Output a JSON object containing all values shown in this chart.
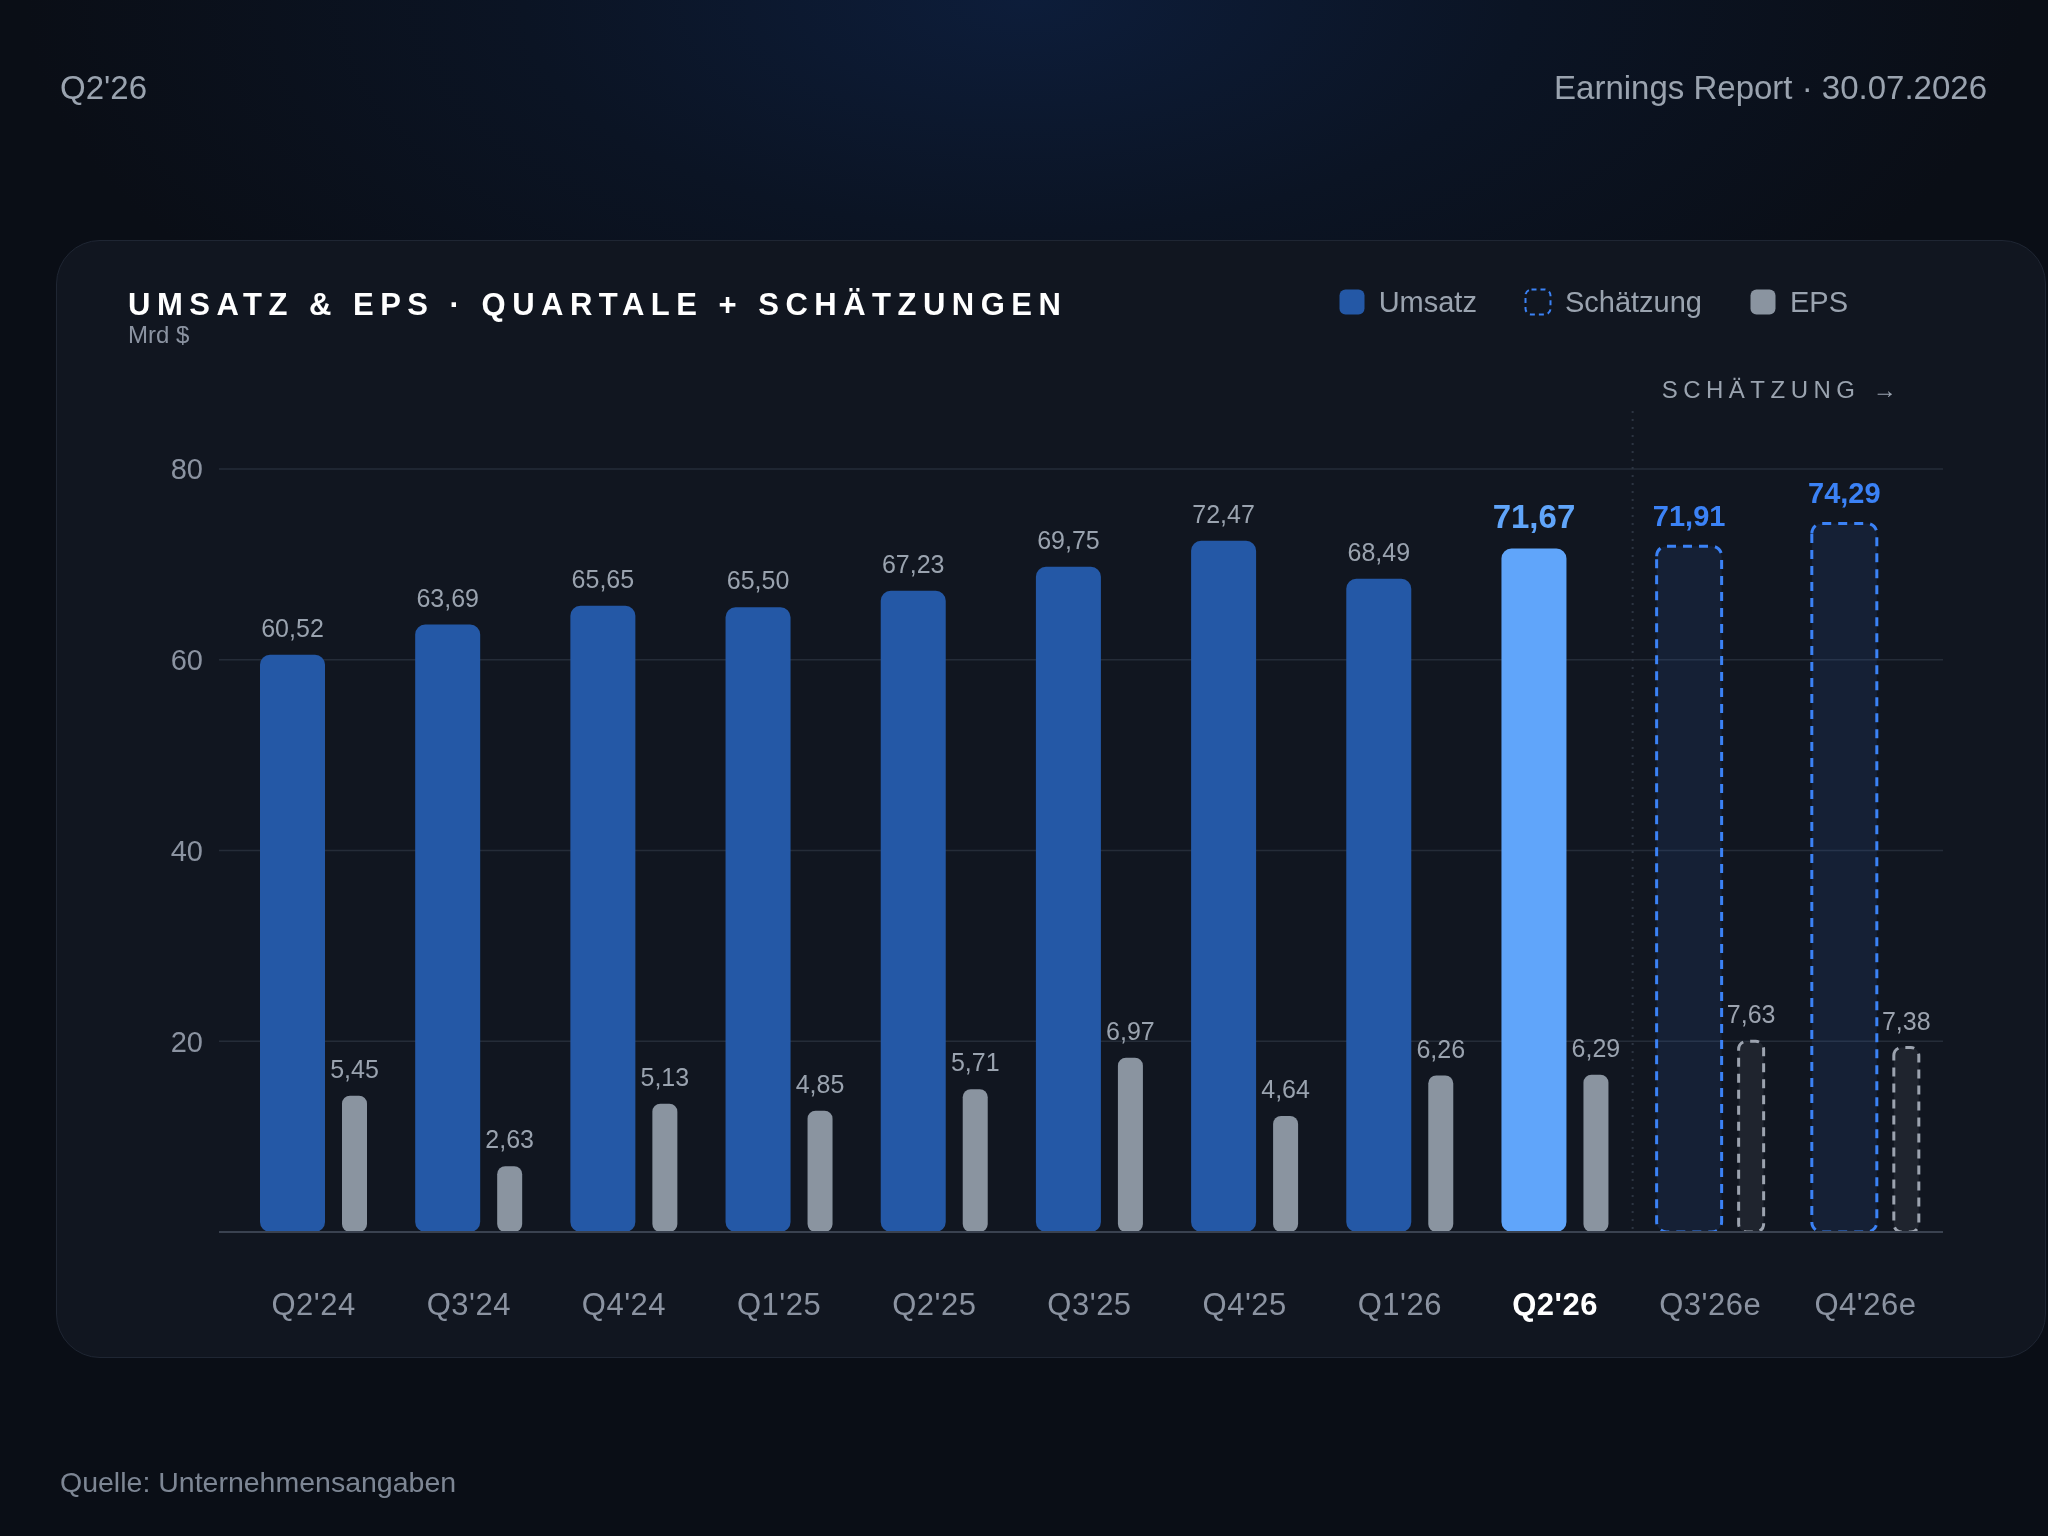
{
  "chart_data": {
    "type": "bar",
    "title": "UMSATZ & EPS · QUARTALE + SCHÄTZUNGEN",
    "subtitle": "Mrd $",
    "annotations": [
      "Q2'26",
      "Earnings Report · 30.07.2026",
      "Quelle: Unternehmensangaben"
    ],
    "categories": [
      "Q2'24",
      "Q3'24",
      "Q4'24",
      "Q1'25",
      "Q2'25",
      "Q3'25",
      "Q4'25",
      "Q1'26",
      "Q2'26",
      "Q3'26e",
      "Q4'26e"
    ],
    "series": [
      {
        "name": "Umsatz",
        "color": "#2458a6",
        "colors": [
          "#2458a6",
          "#2458a6",
          "#2458a6",
          "#2458a6",
          "#2458a6",
          "#2458a6",
          "#2458a6",
          "#2458a6",
          "#60a5fa",
          "#2458a6",
          "#2458a6"
        ],
        "values": [
          60.52,
          63.69,
          65.65,
          65.5,
          67.23,
          69.75,
          72.47,
          68.49,
          71.67,
          null,
          null
        ],
        "value_labels": [
          "60,52",
          "63,69",
          "65,65",
          "65,50",
          "67,23",
          "69,75",
          "72,47",
          "68,49",
          "71,67",
          null,
          null
        ]
      },
      {
        "name": "Schätzung",
        "color": "#3b82f6",
        "line_style": "dashed",
        "values": [
          null,
          null,
          null,
          null,
          null,
          null,
          null,
          null,
          null,
          71.91,
          74.29
        ],
        "value_labels": [
          null,
          null,
          null,
          null,
          null,
          null,
          null,
          null,
          null,
          "71,91",
          "74,29"
        ]
      },
      {
        "name": "EPS",
        "color": "#8a94a0",
        "axis": "y2",
        "values": [
          5.45,
          2.63,
          5.13,
          4.85,
          5.71,
          6.97,
          4.64,
          6.26,
          6.29,
          null,
          null
        ],
        "value_labels": [
          "5,45",
          "2,63",
          "5,13",
          "4,85",
          "5,71",
          "6,97",
          "4,64",
          "6,26",
          "6,29",
          null,
          null
        ]
      },
      {
        "color": "#9ca3af",
        "axis": "y2",
        "line_style": "dashed",
        "values": [
          null,
          null,
          null,
          null,
          null,
          null,
          null,
          null,
          null,
          7.63,
          7.38
        ],
        "value_labels": [
          null,
          null,
          null,
          null,
          null,
          null,
          null,
          null,
          null,
          "7,63",
          "7,38"
        ]
      }
    ],
    "ylim": [
      0,
      80
    ],
    "yticks": [
      20,
      40,
      60,
      80
    ],
    "y2lim": [
      0,
      30.52
    ],
    "grid": "y",
    "legend": "top right",
    "ref_lines": [
      {
        "axis": "x",
        "value": "Q3'26e",
        "label": "SCHÄTZUNG →",
        "line_style": "dotted",
        "color": "#2c3442"
      }
    ]
  }
}
